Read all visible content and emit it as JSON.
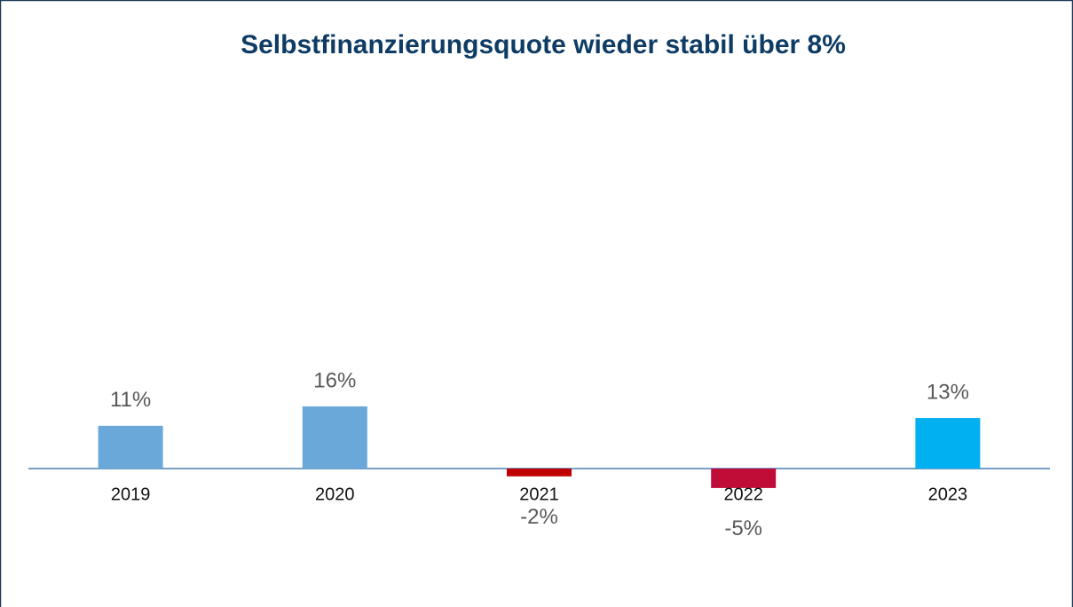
{
  "chart_data": {
    "type": "bar",
    "title": "Selbstfinanzierungsquote wieder stabil über 8%",
    "categories": [
      "2019",
      "2020",
      "2021",
      "2022",
      "2023"
    ],
    "values": [
      11,
      16,
      -2,
      -5,
      13
    ],
    "value_labels": [
      "11%",
      "16%",
      "-2%",
      "-5%",
      "13%"
    ],
    "colors": [
      "#69a8d9",
      "#69a8d9",
      "#c00000",
      "#c00d38",
      "#00b0f0"
    ]
  }
}
